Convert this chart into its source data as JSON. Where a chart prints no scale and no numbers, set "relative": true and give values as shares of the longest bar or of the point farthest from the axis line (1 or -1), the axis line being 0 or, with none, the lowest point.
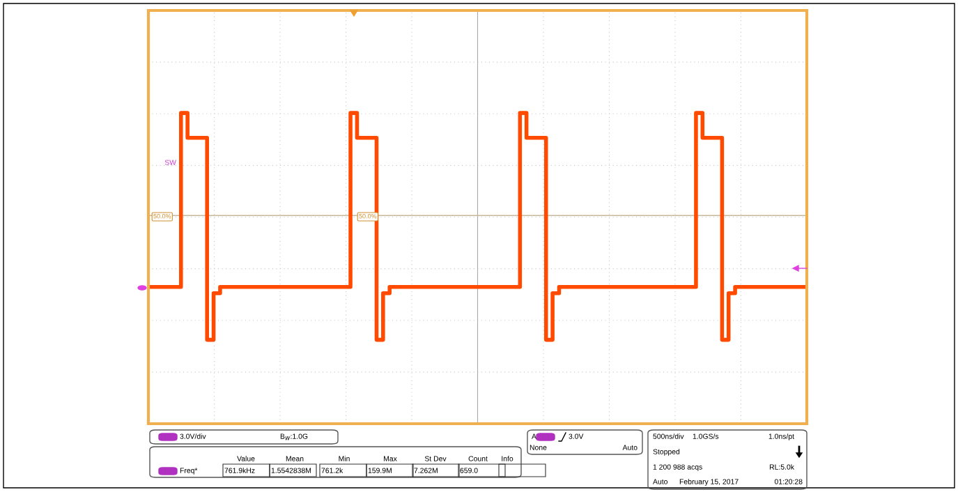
{
  "chart_data": {
    "type": "step",
    "relative": true,
    "grid": true,
    "categories": [
      null,
      null,
      null,
      null,
      null,
      null,
      null,
      null,
      null,
      null,
      null,
      null,
      null,
      null,
      null,
      null,
      null,
      null,
      null,
      null,
      null,
      null,
      null,
      null,
      null,
      null,
      null,
      null,
      null,
      null,
      null,
      null,
      null,
      null,
      null,
      null,
      null,
      null,
      null,
      null,
      null,
      null,
      null,
      null,
      null,
      null,
      null,
      null,
      null,
      null,
      null,
      null,
      null,
      null,
      null,
      null,
      null,
      null,
      null,
      null,
      null,
      null,
      null,
      null,
      null,
      null,
      null,
      null,
      null,
      null,
      null,
      null,
      null,
      null,
      null,
      null,
      null,
      null,
      null,
      null,
      null,
      null,
      null,
      null,
      null,
      null,
      null,
      null,
      null,
      null,
      null,
      null,
      null,
      null,
      null,
      null,
      null,
      null,
      null,
      null,
      null,
      null
    ],
    "series": [
      {
        "color": "#ff4a00",
        "values": [
          0.44,
          0.44,
          0.44,
          0.44,
          0.44,
          1.0,
          0.92,
          0.92,
          0.92,
          0.27,
          0.42,
          0.44,
          0.44,
          0.44,
          0.44,
          0.44,
          0.44,
          0.44,
          0.44,
          0.44,
          0.44,
          0.44,
          0.44,
          0.44,
          0.44,
          0.44,
          0.44,
          0.44,
          0.44,
          0.44,
          0.44,
          1.0,
          0.92,
          0.92,
          0.92,
          0.27,
          0.42,
          0.44,
          0.44,
          0.44,
          0.44,
          0.44,
          0.44,
          0.44,
          0.44,
          0.44,
          0.44,
          0.44,
          0.44,
          0.44,
          0.44,
          0.44,
          0.44,
          0.44,
          0.44,
          0.44,
          0.44,
          1.0,
          0.92,
          0.92,
          0.92,
          0.27,
          0.42,
          0.44,
          0.44,
          0.44,
          0.44,
          0.44,
          0.44,
          0.44,
          0.44,
          0.44,
          0.44,
          0.44,
          0.44,
          0.44,
          0.44,
          0.44,
          0.44,
          0.44,
          0.44,
          0.44,
          0.44,
          0.44,
          1.0,
          0.92,
          0.92,
          0.92,
          0.27,
          0.42,
          0.44,
          0.44,
          0.44,
          0.44,
          0.44,
          0.44,
          0.44,
          0.44,
          0.44,
          0.44,
          0.44,
          0.44
        ]
      }
    ],
    "ref_lines": [
      {
        "axis": "y",
        "value": 0.67,
        "color": "#c8b89a"
      }
    ],
    "annotations": [
      "SW",
      "50.0%",
      "50.0%",
      "3.0V/div",
      "B$_{W}$:1.0G",
      "Value",
      "Mean",
      "Min",
      "Max",
      "St Dev",
      "Count",
      "Info",
      "Freq*",
      "761.9kHz",
      "1.5542838M",
      "761.2k",
      "159.9M",
      "7.262M",
      "659.0",
      "A",
      "3.0V",
      "None",
      "Auto",
      "500ns/div",
      "1.0GS/s",
      "1.0ns/pt",
      "Stopped",
      "1 200 988 acqs",
      "RL:5.0k",
      "Auto",
      "February 15, 2017",
      "01:20:28"
    ]
  }
}
